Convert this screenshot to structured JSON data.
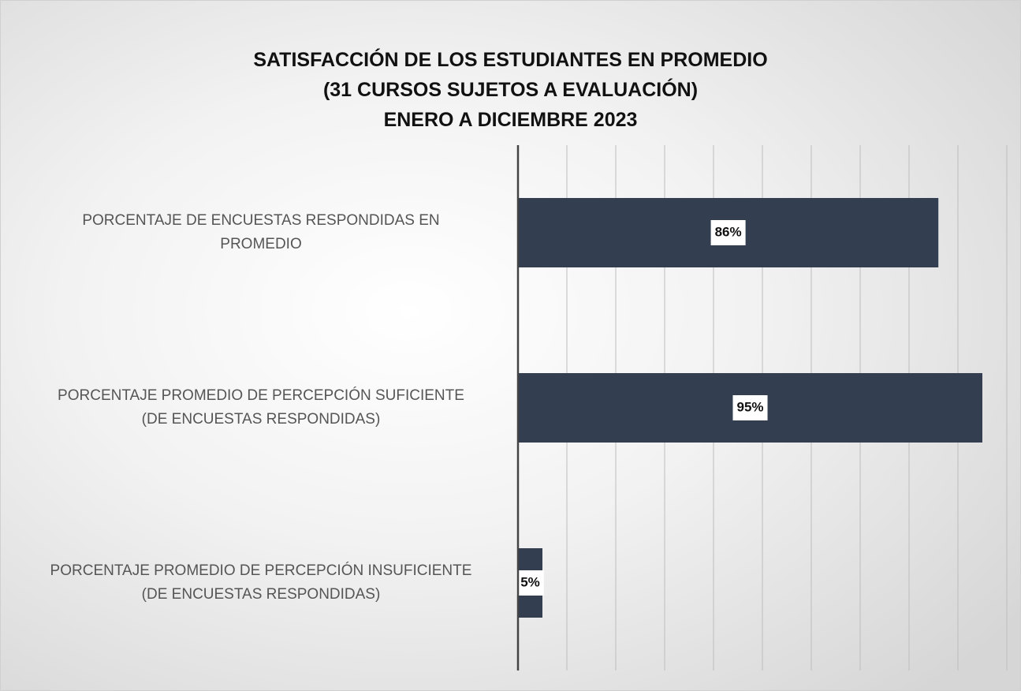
{
  "chart_data": {
    "type": "barh",
    "title": "SATISFACCIÓN DE LOS ESTUDIANTES EN PROMEDIO\n(31 CURSOS SUJETOS A EVALUACIÓN)\nENERO A DICIEMBRE 2023",
    "categories": [
      "PORCENTAJE DE ENCUESTAS RESPONDIDAS EN\nPROMEDIO",
      "PORCENTAJE PROMEDIO DE PERCEPCIÓN SUFICIENTE\n(DE ENCUESTAS RESPONDIDAS)",
      "PORCENTAJE PROMEDIO DE PERCEPCIÓN INSUFICIENTE\n(DE ENCUESTAS RESPONDIDAS)"
    ],
    "values": [
      86,
      95,
      5
    ],
    "value_labels": [
      "86%",
      "95%",
      "5%"
    ],
    "color": "#333f50",
    "xlim": [
      0,
      100
    ],
    "xticks": [
      0,
      10,
      20,
      30,
      40,
      50,
      60,
      70,
      80,
      90,
      100
    ],
    "grid": true
  }
}
